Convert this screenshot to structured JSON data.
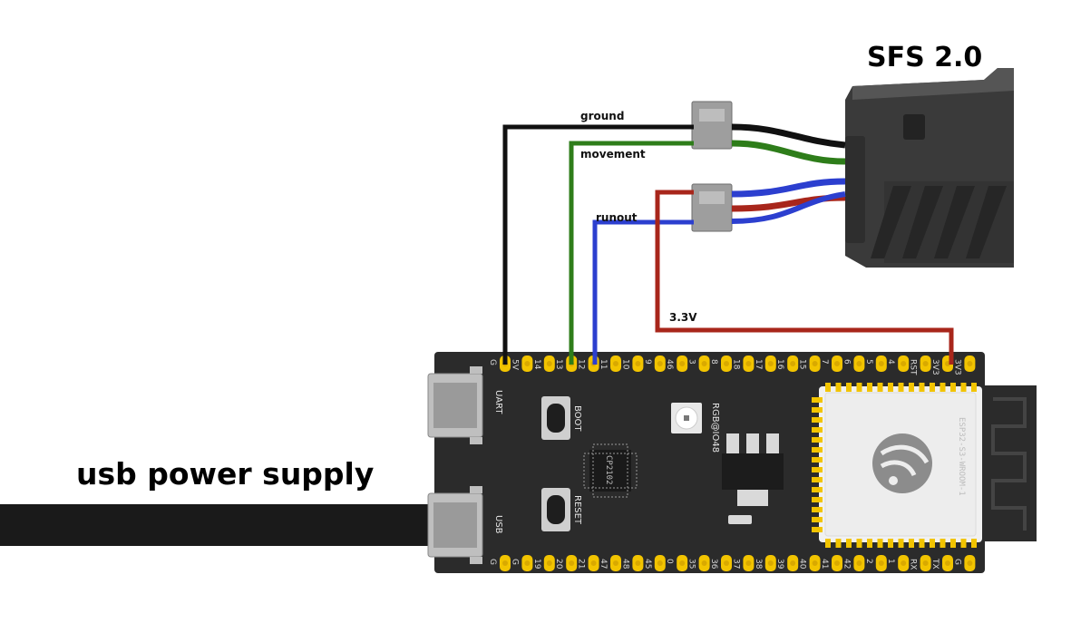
{
  "sensor": {
    "title": "SFS 2.0"
  },
  "power": {
    "label": "usb power supply"
  },
  "wires": [
    {
      "label": "ground",
      "color": "#111111"
    },
    {
      "label": "movement",
      "color": "#2e7d1a"
    },
    {
      "label": "runout",
      "color": "#2c3fcf"
    },
    {
      "label": "3.3V",
      "color": "#a8261b"
    }
  ],
  "board": {
    "module_label": "ESP32-S3-WROOM-1",
    "uart_label": "UART",
    "usb_label": "USB",
    "boot_label": "BOOT",
    "reset_label": "RESET",
    "rgb_label": "RGB@IO48",
    "usb_chip_label": "CP2102",
    "top_pins": [
      "G",
      "5V",
      "14",
      "13",
      "12",
      "11",
      "10",
      "9",
      "46",
      "3",
      "8",
      "18",
      "17",
      "16",
      "15",
      "7",
      "6",
      "5",
      "4",
      "RST",
      "3V3",
      "3V3"
    ],
    "bottom_pins": [
      "G",
      "G",
      "19",
      "20",
      "21",
      "47",
      "48",
      "45",
      "0",
      "35",
      "36",
      "37",
      "38",
      "39",
      "40",
      "41",
      "42",
      "2",
      "1",
      "RX",
      "TX",
      "G"
    ]
  },
  "colors": {
    "pin_gold": "#f2c400",
    "board": "#2b2b2b",
    "sensor_body": "#3a3a3a"
  }
}
